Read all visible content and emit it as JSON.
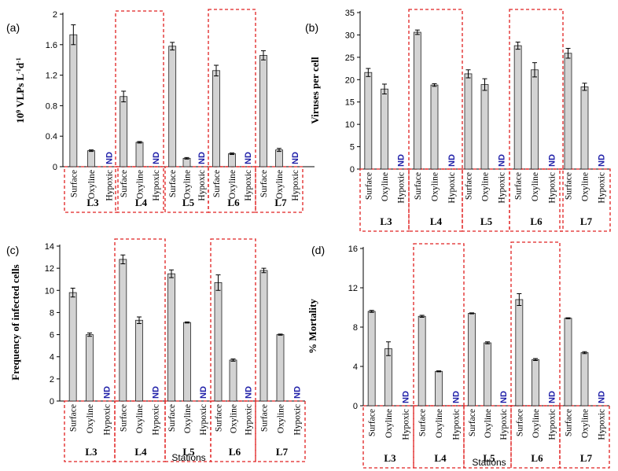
{
  "style": {
    "bar_fill": "#d3d3d3",
    "bar_stroke": "#222222",
    "nd_color": "#1f1fa8",
    "box_color": "#e02020",
    "axis_color": "#000000"
  },
  "figure_text": {
    "nd": "ND",
    "stations_label": "Stations"
  },
  "chart_data": [
    {
      "type": "bar",
      "panel": "(a)",
      "ylabel_base": "10",
      "ylabel_sup1": "9",
      "ylabel_mid": " VLPs L",
      "ylabel_sup2": "-1",
      "ylabel_mid2": "d",
      "ylabel_sup3": "-1",
      "ylim": [
        0,
        2
      ],
      "yticks": [
        0,
        0.4,
        0.8,
        1.2,
        1.6,
        2
      ],
      "ytick_labels": [
        "0",
        "0.4",
        "0.8",
        "1.2",
        "1.6",
        "2"
      ],
      "stations": [
        "L3",
        "L4",
        "L5",
        "L6",
        "L7"
      ],
      "depths": [
        "Surface",
        "Oxyline",
        "Hypoxic"
      ],
      "values": [
        [
          1.73,
          0.21,
          null
        ],
        [
          0.92,
          0.32,
          null
        ],
        [
          1.58,
          0.11,
          null
        ],
        [
          1.26,
          0.17,
          null
        ],
        [
          1.46,
          0.22,
          null
        ]
      ],
      "errors": [
        [
          0.13,
          0.01,
          null
        ],
        [
          0.07,
          0.01,
          null
        ],
        [
          0.05,
          0.01,
          null
        ],
        [
          0.07,
          0.01,
          null
        ],
        [
          0.06,
          0.02,
          null
        ]
      ],
      "xlabel": ""
    },
    {
      "type": "bar",
      "panel": "(b)",
      "ylabel_plain": "Viruses per cell",
      "ylim": [
        0,
        35
      ],
      "yticks": [
        0,
        5,
        10,
        15,
        20,
        25,
        30,
        35
      ],
      "ytick_labels": [
        "0",
        "5",
        "10",
        "15",
        "20",
        "25",
        "30",
        "35"
      ],
      "stations": [
        "L3",
        "L4",
        "L5",
        "L6",
        "L7"
      ],
      "depths": [
        "Surface",
        "Oxyline",
        "Hypoxic"
      ],
      "values": [
        [
          21.6,
          17.9,
          null
        ],
        [
          30.6,
          18.8,
          null
        ],
        [
          21.3,
          18.9,
          null
        ],
        [
          27.6,
          22.2,
          null
        ],
        [
          25.9,
          18.4,
          null
        ]
      ],
      "errors": [
        [
          0.9,
          1.1,
          null
        ],
        [
          0.5,
          0.3,
          null
        ],
        [
          0.9,
          1.3,
          null
        ],
        [
          0.8,
          1.6,
          null
        ],
        [
          1.1,
          0.8,
          null
        ]
      ],
      "xlabel": ""
    },
    {
      "type": "bar",
      "panel": "(c)",
      "ylabel_plain": "Frequency of infected cells",
      "ylim": [
        0,
        14
      ],
      "yticks": [
        0,
        2,
        4,
        6,
        8,
        10,
        12,
        14
      ],
      "ytick_labels": [
        "0",
        "2",
        "4",
        "6",
        "8",
        "10",
        "12",
        "14"
      ],
      "stations": [
        "L3",
        "L4",
        "L5",
        "L6",
        "L7"
      ],
      "depths": [
        "Surface",
        "Oxyline",
        "Hypoxic"
      ],
      "values": [
        [
          9.8,
          6.0,
          null
        ],
        [
          12.8,
          7.3,
          null
        ],
        [
          11.5,
          7.1,
          null
        ],
        [
          10.7,
          3.7,
          null
        ],
        [
          11.8,
          6.0,
          null
        ]
      ],
      "errors": [
        [
          0.4,
          0.15,
          null
        ],
        [
          0.4,
          0.3,
          null
        ],
        [
          0.35,
          0.05,
          null
        ],
        [
          0.7,
          0.1,
          null
        ],
        [
          0.2,
          0.05,
          null
        ]
      ],
      "xlabel": "Stations"
    },
    {
      "type": "bar",
      "panel": "(d)",
      "ylabel_plain": "% Mortality",
      "ylim": [
        0,
        16
      ],
      "yticks": [
        0,
        4,
        8,
        12,
        16
      ],
      "ytick_labels": [
        "0",
        "4",
        "8",
        "12",
        "16"
      ],
      "stations": [
        "L3",
        "L4",
        "L5",
        "L6",
        "L7"
      ],
      "depths": [
        "Surface",
        "Oxyline",
        "Hypoxic"
      ],
      "values": [
        [
          9.6,
          5.8,
          null
        ],
        [
          9.1,
          3.5,
          null
        ],
        [
          9.4,
          6.4,
          null
        ],
        [
          10.8,
          4.7,
          null
        ],
        [
          8.9,
          5.4,
          null
        ]
      ],
      "errors": [
        [
          0.1,
          0.7,
          null
        ],
        [
          0.1,
          0.05,
          null
        ],
        [
          0.05,
          0.1,
          null
        ],
        [
          0.6,
          0.1,
          null
        ],
        [
          0.05,
          0.1,
          null
        ]
      ],
      "xlabel": "Stations"
    }
  ]
}
